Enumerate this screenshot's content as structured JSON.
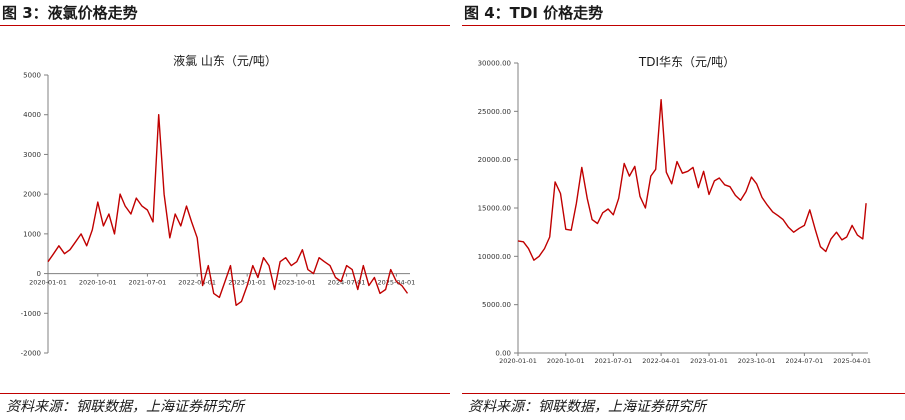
{
  "figures": [
    {
      "fig_title": "图 3：液氯价格走势",
      "source": "资料来源：钢联数据，上海证券研究所"
    },
    {
      "fig_title": "图 4：TDI 价格走势",
      "source": "资料来源：钢联数据，上海证券研究所"
    }
  ],
  "chart_data": [
    {
      "type": "line",
      "title": "液氯 山东（元/吨）",
      "xlabel": "",
      "ylabel": "",
      "ylim": [
        -2000,
        5000
      ],
      "ytick_values": [
        -2000,
        -1000,
        0,
        1000,
        2000,
        3000,
        4000,
        5000
      ],
      "ytick_labels": [
        "-2000",
        "-1000",
        "0",
        "1000",
        "2000",
        "3000",
        "4000",
        "5000"
      ],
      "xtick_labels": [
        "2020-01-01",
        "2020-10-01",
        "2021-07-01",
        "2022-04-01",
        "2023-01-01",
        "2023-10-01",
        "2024-07-01",
        "2025-04-01"
      ],
      "xtick_x_values": [
        "2020-01-01",
        "2020-10-01",
        "2021-07-01",
        "2022-04-01",
        "2023-01-01",
        "2023-10-01",
        "2024-07-01",
        "2025-04-01"
      ],
      "xlim": [
        "2020-01-01",
        "2025-06-15"
      ],
      "x_axis_at_zero": true,
      "grid": false,
      "color": "#c00000",
      "series": [
        {
          "x": [
            "2020-01-01",
            "2020-02-01",
            "2020-03-01",
            "2020-04-01",
            "2020-05-01",
            "2020-06-01",
            "2020-07-01",
            "2020-08-01",
            "2020-09-01",
            "2020-10-01",
            "2020-11-01",
            "2020-12-01",
            "2021-01-01",
            "2021-02-01",
            "2021-03-01",
            "2021-04-01",
            "2021-05-01",
            "2021-06-01",
            "2021-07-01",
            "2021-08-01",
            "2021-09-01",
            "2021-10-01",
            "2021-11-01",
            "2021-12-01",
            "2022-01-01",
            "2022-02-01",
            "2022-03-01",
            "2022-04-01",
            "2022-05-01",
            "2022-06-01",
            "2022-07-01",
            "2022-08-01",
            "2022-09-01",
            "2022-10-01",
            "2022-11-01",
            "2022-12-01",
            "2023-01-01",
            "2023-02-01",
            "2023-03-01",
            "2023-04-01",
            "2023-05-01",
            "2023-06-01",
            "2023-07-01",
            "2023-08-01",
            "2023-09-01",
            "2023-10-01",
            "2023-11-01",
            "2023-12-01",
            "2024-01-01",
            "2024-02-01",
            "2024-03-01",
            "2024-04-01",
            "2024-05-01",
            "2024-06-01",
            "2024-07-01",
            "2024-08-01",
            "2024-09-01",
            "2024-10-01",
            "2024-11-01",
            "2024-12-01",
            "2025-01-01",
            "2025-02-01",
            "2025-03-01",
            "2025-04-01",
            "2025-05-01",
            "2025-06-01"
          ],
          "y": [
            300,
            500,
            700,
            500,
            600,
            800,
            1000,
            700,
            1100,
            1800,
            1200,
            1500,
            1000,
            2000,
            1700,
            1500,
            1900,
            1700,
            1600,
            1300,
            4000,
            2000,
            900,
            1500,
            1200,
            1700,
            1300,
            900,
            -300,
            200,
            -500,
            -600,
            -200,
            200,
            -800,
            -700,
            -300,
            200,
            -100,
            400,
            200,
            -400,
            300,
            400,
            200,
            300,
            600,
            100,
            0,
            400,
            300,
            200,
            -100,
            -200,
            200,
            100,
            -400,
            200,
            -300,
            -100,
            -500,
            -400,
            100,
            -200,
            -300,
            -500
          ]
        }
      ]
    },
    {
      "type": "line",
      "title": "TDI华东（元/吨）",
      "xlabel": "",
      "ylabel": "",
      "ylim": [
        0,
        30000
      ],
      "ytick_values": [
        0,
        5000,
        10000,
        15000,
        20000,
        25000,
        30000
      ],
      "ytick_labels": [
        "0.00",
        "5000.00",
        "10000.00",
        "15000.00",
        "20000.00",
        "25000.00",
        "30000.00"
      ],
      "xtick_labels": [
        "2020-01-01",
        "2020-10-01",
        "2021-07-01",
        "2022-04-01",
        "2023-01-01",
        "2023-10-01",
        "2024-07-01",
        "2025-04-01"
      ],
      "xtick_x_values": [
        "2020-01-01",
        "2020-10-01",
        "2021-07-01",
        "2022-04-01",
        "2023-01-01",
        "2023-10-01",
        "2024-07-01",
        "2025-04-01"
      ],
      "xlim": [
        "2020-01-01",
        "2025-07-01"
      ],
      "x_axis_at_zero": false,
      "grid": false,
      "color": "#c00000",
      "series": [
        {
          "x": [
            "2020-01-01",
            "2020-02-01",
            "2020-03-01",
            "2020-04-01",
            "2020-05-01",
            "2020-06-01",
            "2020-07-01",
            "2020-08-01",
            "2020-09-01",
            "2020-10-01",
            "2020-11-01",
            "2020-12-01",
            "2021-01-01",
            "2021-02-01",
            "2021-03-01",
            "2021-04-01",
            "2021-05-01",
            "2021-06-01",
            "2021-07-01",
            "2021-08-01",
            "2021-09-01",
            "2021-10-01",
            "2021-11-01",
            "2021-12-01",
            "2022-01-01",
            "2022-02-01",
            "2022-03-01",
            "2022-04-01",
            "2022-05-01",
            "2022-06-01",
            "2022-07-01",
            "2022-08-01",
            "2022-09-01",
            "2022-10-01",
            "2022-11-01",
            "2022-12-01",
            "2023-01-01",
            "2023-02-01",
            "2023-03-01",
            "2023-04-01",
            "2023-05-01",
            "2023-06-01",
            "2023-07-01",
            "2023-08-01",
            "2023-09-01",
            "2023-10-01",
            "2023-11-01",
            "2023-12-01",
            "2024-01-01",
            "2024-02-01",
            "2024-03-01",
            "2024-04-01",
            "2024-05-01",
            "2024-06-01",
            "2024-07-01",
            "2024-08-01",
            "2024-09-01",
            "2024-10-01",
            "2024-11-01",
            "2024-12-01",
            "2025-01-01",
            "2025-02-01",
            "2025-03-01",
            "2025-04-01",
            "2025-05-01",
            "2025-06-01",
            "2025-06-20"
          ],
          "y": [
            11600,
            11500,
            10800,
            9600,
            10000,
            10800,
            12000,
            17700,
            16500,
            12800,
            12700,
            15500,
            19200,
            16000,
            13800,
            13400,
            14500,
            14900,
            14300,
            16000,
            19600,
            18300,
            19300,
            16200,
            15000,
            18300,
            19000,
            26200,
            18700,
            17500,
            19800,
            18600,
            18800,
            19200,
            17100,
            18800,
            16400,
            17800,
            18100,
            17400,
            17200,
            16300,
            15800,
            16700,
            18200,
            17500,
            16100,
            15300,
            14600,
            14200,
            13800,
            13000,
            12500,
            12900,
            13200,
            14800,
            12800,
            11000,
            10500,
            11800,
            12500,
            11700,
            12000,
            13200,
            12200,
            11800,
            15500
          ]
        }
      ]
    }
  ]
}
